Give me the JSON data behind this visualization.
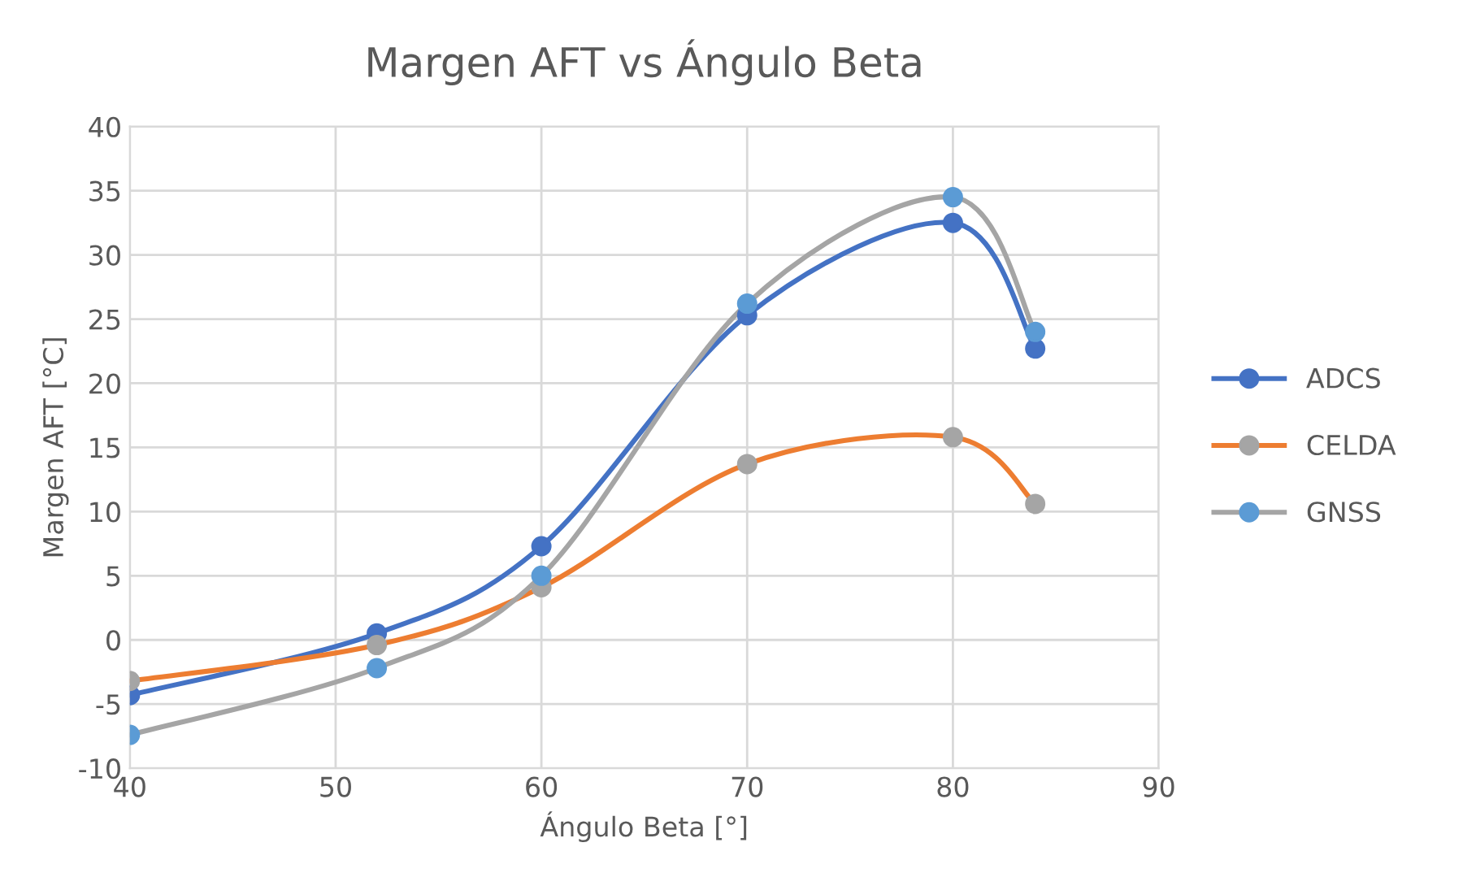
{
  "chart_data": {
    "type": "line",
    "title": "Margen AFT vs Ángulo Beta",
    "xlabel": "Ángulo Beta [°]",
    "ylabel": "Margen AFT [°C]",
    "x": [
      40,
      52,
      60,
      70,
      80,
      84
    ],
    "series": [
      {
        "name": "ADCS",
        "color": "#4472c4",
        "colors": [
          "#4472c4",
          "#4472c4",
          "#4472c4",
          "#4472c4",
          "#4472c4",
          "#4472c4"
        ],
        "values": [
          -4.3,
          0.5,
          7.3,
          25.3,
          32.5,
          22.7
        ]
      },
      {
        "name": "CELDA",
        "color": "#ed7d31",
        "colors": [
          "#a5a5a5",
          "#a5a5a5",
          "#a5a5a5",
          "#a5a5a5",
          "#a5a5a5",
          "#a5a5a5"
        ],
        "values": [
          -3.2,
          -0.4,
          4.1,
          13.7,
          15.8,
          10.6
        ]
      },
      {
        "name": "GNSS",
        "color": "#a5a5a5",
        "colors": [
          "#5b9bd5",
          "#5b9bd5",
          "#5b9bd5",
          "#5b9bd5",
          "#5b9bd5",
          "#5b9bd5"
        ],
        "values": [
          -7.4,
          -2.2,
          5.0,
          26.2,
          34.5,
          24.0
        ]
      }
    ],
    "xlim": [
      40,
      90
    ],
    "xticks": [
      40,
      50,
      60,
      70,
      80,
      90
    ],
    "ylim": [
      -10,
      40
    ],
    "yticks": [
      -10,
      -5,
      0,
      5,
      10,
      15,
      20,
      25,
      30,
      35,
      40
    ],
    "grid": true,
    "legend": "right",
    "marker": "circle",
    "line_style": "solid"
  }
}
